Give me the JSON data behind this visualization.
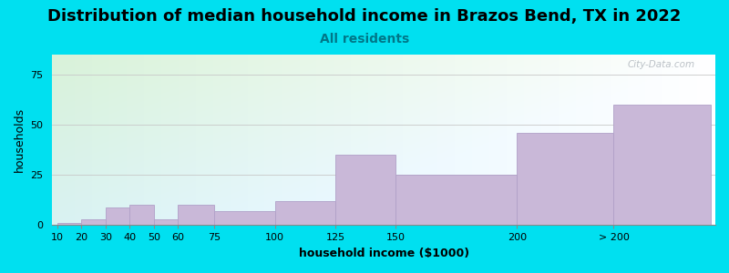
{
  "title": "Distribution of median household income in Brazos Bend, TX in 2022",
  "subtitle": "All residents",
  "xlabel": "household income ($1000)",
  "ylabel": "households",
  "bar_labels": [
    "10",
    "20",
    "30",
    "40",
    "50",
    "60",
    "75",
    "100",
    "125",
    "150",
    "200",
    "> 200"
  ],
  "bar_values": [
    1,
    3,
    9,
    10,
    3,
    10,
    7,
    12,
    35,
    25,
    46,
    60
  ],
  "bar_color": "#c9b8d8",
  "bar_edge_color": "#b0a0c8",
  "background_color_tl": "#d8f0d0",
  "background_color_tr": "#f8ffff",
  "background_color_br": "#e0f8f8",
  "outer_bg": "#00e0f0",
  "ylim": [
    0,
    85
  ],
  "yticks": [
    0,
    25,
    50,
    75
  ],
  "title_fontsize": 13,
  "subtitle_fontsize": 10,
  "subtitle_color": "#007788",
  "axis_label_fontsize": 9,
  "tick_fontsize": 8,
  "watermark": "City-Data.com"
}
